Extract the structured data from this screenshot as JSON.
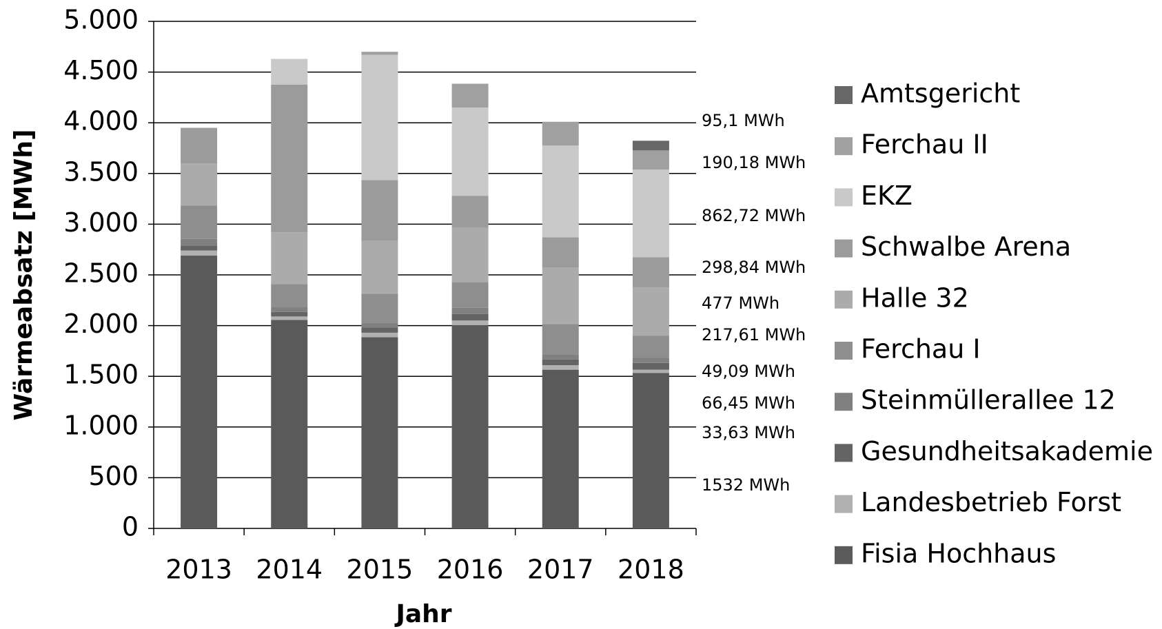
{
  "chart_data": {
    "type": "stacked_bar",
    "x_label": "Jahr",
    "y_label": "Wärmeabsatz [MWh]",
    "categories": [
      "2013",
      "2014",
      "2015",
      "2016",
      "2017",
      "2018"
    ],
    "ylim": [
      0,
      5000
    ],
    "yticks": [
      0,
      500,
      {
        "value": 1000,
        "label": "1.000"
      },
      {
        "value": 1500,
        "label": "1.500"
      },
      {
        "value": 2000,
        "label": "2.000"
      },
      {
        "value": 2500,
        "label": "2.500"
      },
      {
        "value": 3000,
        "label": "3.000"
      },
      {
        "value": 3500,
        "label": "3.500"
      },
      {
        "value": 4000,
        "label": "4.000"
      },
      {
        "value": 4500,
        "label": "4.500"
      },
      {
        "value": 5000,
        "label": "5.000"
      }
    ],
    "grid": true,
    "legend": "right",
    "series": [
      {
        "name": "Fisia Hochhaus",
        "color": "#5a5a5a",
        "values": [
          2690,
          2055,
          1885,
          2005,
          1565,
          1532
        ],
        "value_labels": [
          null,
          null,
          null,
          null,
          null,
          "1532 MWh"
        ]
      },
      {
        "name": "Landesbetrieb Forst",
        "color": "#b0b0b0",
        "values": [
          50,
          35,
          45,
          45,
          45,
          33.63
        ],
        "value_labels": [
          null,
          null,
          null,
          null,
          null,
          "33,63 MWh"
        ]
      },
      {
        "name": "Gesundheitsakademie",
        "color": "#646464",
        "values": [
          50,
          45,
          50,
          65,
          55,
          66.45
        ],
        "value_labels": [
          null,
          null,
          null,
          null,
          null,
          "66,45 MWh"
        ]
      },
      {
        "name": "Steinmüllerallee 12",
        "color": "#808080",
        "values": [
          65,
          50,
          45,
          60,
          50,
          49.09
        ],
        "value_labels": [
          null,
          null,
          null,
          null,
          null,
          "49,09 MWh"
        ]
      },
      {
        "name": "Ferchau I",
        "color": "#8e8e8e",
        "values": [
          330,
          225,
          290,
          255,
          300,
          217.61
        ],
        "value_labels": [
          null,
          null,
          null,
          null,
          null,
          "217,61 MWh"
        ]
      },
      {
        "name": "Halle 32",
        "color": "#ababab",
        "values": [
          415,
          510,
          520,
          535,
          555,
          477
        ],
        "value_labels": [
          null,
          null,
          null,
          null,
          null,
          "477 MWh"
        ]
      },
      {
        "name": "Schwalbe Arena",
        "color": "#9b9b9b",
        "values": [
          350,
          1455,
          600,
          315,
          300,
          298.84
        ],
        "value_labels": [
          null,
          null,
          null,
          null,
          null,
          "298,84 MWh"
        ]
      },
      {
        "name": "EKZ",
        "color": "#c9c9c9",
        "values": [
          0,
          255,
          1235,
          870,
          905,
          862.72
        ],
        "value_labels": [
          null,
          null,
          null,
          null,
          null,
          "862,72 MWh"
        ]
      },
      {
        "name": "Ferchau II",
        "color": "#a0a0a0",
        "values": [
          0,
          0,
          30,
          235,
          235,
          190.18
        ],
        "value_labels": [
          null,
          null,
          null,
          null,
          null,
          "190,18 MWh"
        ]
      },
      {
        "name": "Amtsgericht",
        "color": "#676767",
        "values": [
          0,
          0,
          0,
          0,
          0,
          95.1
        ],
        "value_labels": [
          null,
          null,
          null,
          null,
          null,
          "95,1 MWh"
        ]
      }
    ]
  }
}
